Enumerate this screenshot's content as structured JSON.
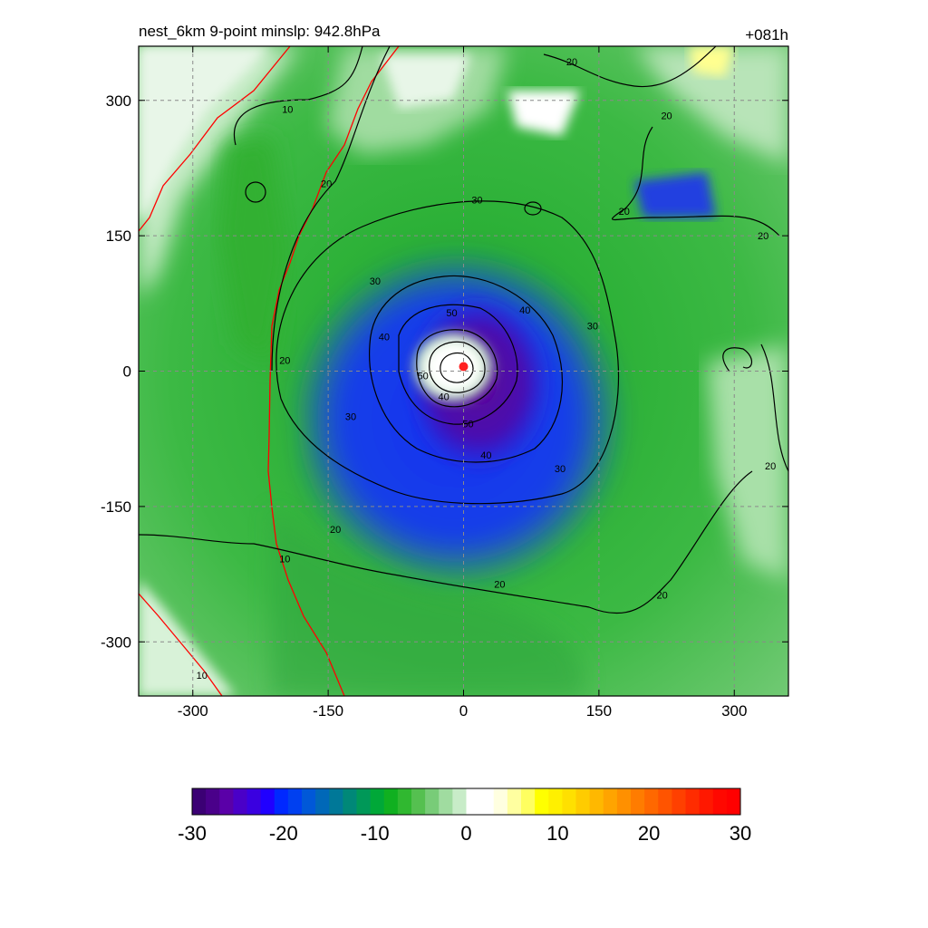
{
  "chart_data": {
    "type": "heatmap",
    "title_left": "nest_6km  9-point minslp: 942.8hPa",
    "title_right": "+081h",
    "xlabel": "",
    "ylabel": "",
    "xlim": [
      -360,
      360
    ],
    "ylim": [
      -360,
      360
    ],
    "x_ticks": [
      -300,
      -150,
      0,
      150,
      300
    ],
    "y_ticks": [
      300,
      150,
      0,
      -150,
      -300
    ],
    "grid": true,
    "center_marker": {
      "x": 0,
      "y": 5,
      "color": "#ff2020"
    },
    "contour_levels": [
      10,
      20,
      30,
      40,
      50
    ],
    "contour_labels": [
      {
        "x": -195,
        "y": 290,
        "text": "10"
      },
      {
        "x": -152,
        "y": 208,
        "text": "20"
      },
      {
        "x": 120,
        "y": 343,
        "text": "20"
      },
      {
        "x": 225,
        "y": 283,
        "text": "20"
      },
      {
        "x": 178,
        "y": 177,
        "text": "20"
      },
      {
        "x": 332,
        "y": 150,
        "text": "20"
      },
      {
        "x": 15,
        "y": 190,
        "text": "30"
      },
      {
        "x": -98,
        "y": 100,
        "text": "30"
      },
      {
        "x": 143,
        "y": 50,
        "text": "30"
      },
      {
        "x": -88,
        "y": 38,
        "text": "40"
      },
      {
        "x": 68,
        "y": 68,
        "text": "40"
      },
      {
        "x": -13,
        "y": 65,
        "text": "50"
      },
      {
        "x": -198,
        "y": 12,
        "text": "20"
      },
      {
        "x": -22,
        "y": -28,
        "text": "40"
      },
      {
        "x": -45,
        "y": -5,
        "text": "50"
      },
      {
        "x": 5,
        "y": -58,
        "text": "50"
      },
      {
        "x": -125,
        "y": -50,
        "text": "30"
      },
      {
        "x": 25,
        "y": -93,
        "text": "40"
      },
      {
        "x": 107,
        "y": -108,
        "text": "30"
      },
      {
        "x": 340,
        "y": -105,
        "text": "20"
      },
      {
        "x": -142,
        "y": -175,
        "text": "20"
      },
      {
        "x": 40,
        "y": -236,
        "text": "20"
      },
      {
        "x": 220,
        "y": -248,
        "text": "20"
      },
      {
        "x": -198,
        "y": -208,
        "text": "10"
      },
      {
        "x": -290,
        "y": -337,
        "text": "10"
      }
    ],
    "colorbar": {
      "min": -30,
      "max": 30,
      "ticks": [
        -30,
        -20,
        -10,
        0,
        10,
        20,
        30
      ],
      "colors": [
        "#3b0074",
        "#4a008a",
        "#5a00a8",
        "#4a00c8",
        "#3a00e0",
        "#2000ff",
        "#0028ff",
        "#0040f0",
        "#0058d8",
        "#0068b8",
        "#007898",
        "#008878",
        "#009858",
        "#00a838",
        "#10b020",
        "#30b830",
        "#55c050",
        "#78cc78",
        "#a0dca0",
        "#c8ecc8",
        "#ffffff",
        "#ffffff",
        "#ffffe0",
        "#ffffa0",
        "#ffff60",
        "#ffff00",
        "#fff000",
        "#ffe000",
        "#ffcc00",
        "#ffb800",
        "#ffa400",
        "#ff9000",
        "#ff7c00",
        "#ff6800",
        "#ff5400",
        "#ff4000",
        "#ff2c00",
        "#ff1800",
        "#ff0800",
        "#ff0000"
      ]
    }
  }
}
